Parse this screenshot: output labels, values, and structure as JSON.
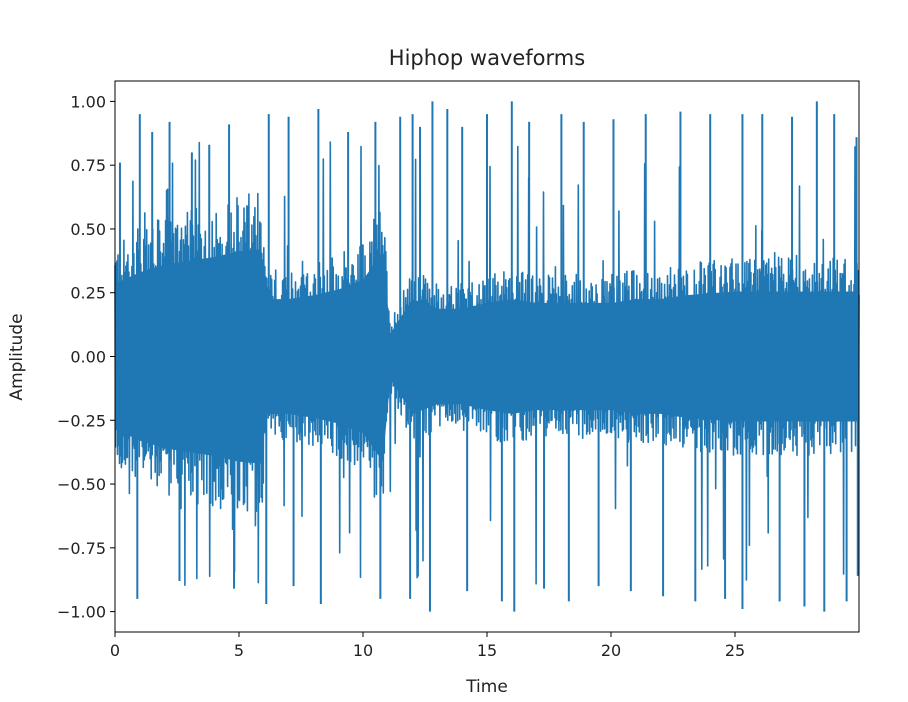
{
  "chart_data": {
    "type": "line",
    "title": "Hiphop waveforms",
    "xlabel": "Time",
    "ylabel": "Amplitude",
    "xlim": [
      0,
      30
    ],
    "ylim": [
      -1.08,
      1.08
    ],
    "x_ticks": [
      0,
      5,
      10,
      15,
      20,
      25
    ],
    "x_tick_labels": [
      "0",
      "5",
      "10",
      "15",
      "20",
      "25"
    ],
    "y_ticks": [
      1.0,
      0.75,
      0.5,
      0.25,
      0.0,
      -0.25,
      -0.5,
      -0.75,
      -1.0
    ],
    "y_tick_labels": [
      "1.00",
      "0.75",
      "0.50",
      "0.25",
      "0.00",
      "−0.25",
      "−0.50",
      "−0.75",
      "−1.00"
    ],
    "grid": false,
    "series": [
      {
        "name": "waveform",
        "color": "#1f77b4",
        "envelope": {
          "time": [
            0,
            1,
            2,
            3,
            4,
            5,
            5.9,
            6.1,
            7,
            8,
            9,
            10,
            10.8,
            11.1,
            12,
            13,
            14,
            15,
            16,
            17,
            18,
            19,
            20,
            21,
            21.4,
            22,
            23,
            24,
            25,
            26,
            27,
            28,
            29,
            30
          ],
          "core_amplitude": [
            0.38,
            0.44,
            0.48,
            0.5,
            0.52,
            0.55,
            0.56,
            0.3,
            0.3,
            0.32,
            0.35,
            0.4,
            0.55,
            0.12,
            0.3,
            0.25,
            0.25,
            0.28,
            0.3,
            0.28,
            0.28,
            0.28,
            0.28,
            0.3,
            0.3,
            0.3,
            0.32,
            0.33,
            0.34,
            0.34,
            0.34,
            0.34,
            0.34,
            0.34
          ]
        },
        "peaks": [
          {
            "t": 0.2,
            "a": 0.76
          },
          {
            "t": 0.9,
            "a": -0.95
          },
          {
            "t": 1.0,
            "a": 0.95
          },
          {
            "t": 1.5,
            "a": 0.88
          },
          {
            "t": 2.2,
            "a": 0.92
          },
          {
            "t": 2.6,
            "a": -0.88
          },
          {
            "t": 3.1,
            "a": 0.8
          },
          {
            "t": 3.8,
            "a": 0.83
          },
          {
            "t": 4.6,
            "a": 0.91
          },
          {
            "t": 4.8,
            "a": -0.91
          },
          {
            "t": 6.2,
            "a": 0.95
          },
          {
            "t": 6.1,
            "a": -0.97
          },
          {
            "t": 7.0,
            "a": 0.94
          },
          {
            "t": 7.2,
            "a": -0.9
          },
          {
            "t": 8.2,
            "a": 0.97
          },
          {
            "t": 8.3,
            "a": -0.97
          },
          {
            "t": 9.4,
            "a": 0.88
          },
          {
            "t": 10.5,
            "a": 0.92
          },
          {
            "t": 10.7,
            "a": -0.95
          },
          {
            "t": 11.5,
            "a": 0.94
          },
          {
            "t": 11.9,
            "a": -0.95
          },
          {
            "t": 12.0,
            "a": 0.95
          },
          {
            "t": 12.3,
            "a": 0.9
          },
          {
            "t": 12.8,
            "a": 1.0
          },
          {
            "t": 12.7,
            "a": -1.0
          },
          {
            "t": 13.4,
            "a": 0.97
          },
          {
            "t": 14.0,
            "a": 0.9
          },
          {
            "t": 14.2,
            "a": -0.92
          },
          {
            "t": 15.0,
            "a": 0.95
          },
          {
            "t": 15.6,
            "a": -0.96
          },
          {
            "t": 16.0,
            "a": 1.0
          },
          {
            "t": 16.1,
            "a": -1.0
          },
          {
            "t": 16.7,
            "a": 0.92
          },
          {
            "t": 17.3,
            "a": -0.91
          },
          {
            "t": 18.0,
            "a": 0.95
          },
          {
            "t": 18.3,
            "a": -0.96
          },
          {
            "t": 18.9,
            "a": 0.92
          },
          {
            "t": 19.5,
            "a": -0.9
          },
          {
            "t": 20.1,
            "a": 0.93
          },
          {
            "t": 20.8,
            "a": -0.92
          },
          {
            "t": 21.4,
            "a": 0.95
          },
          {
            "t": 22.1,
            "a": -0.94
          },
          {
            "t": 22.8,
            "a": 0.96
          },
          {
            "t": 23.4,
            "a": -0.96
          },
          {
            "t": 24.0,
            "a": 0.95
          },
          {
            "t": 24.6,
            "a": -0.95
          },
          {
            "t": 25.3,
            "a": 0.95
          },
          {
            "t": 25.3,
            "a": -0.99
          },
          {
            "t": 26.1,
            "a": 0.95
          },
          {
            "t": 26.8,
            "a": -0.96
          },
          {
            "t": 27.3,
            "a": 0.94
          },
          {
            "t": 27.8,
            "a": -0.98
          },
          {
            "t": 28.3,
            "a": 1.0
          },
          {
            "t": 28.6,
            "a": -1.0
          },
          {
            "t": 29.0,
            "a": 0.95
          },
          {
            "t": 29.5,
            "a": -0.96
          },
          {
            "t": 29.9,
            "a": 0.86
          },
          {
            "t": 29.95,
            "a": -0.86
          }
        ]
      }
    ]
  }
}
